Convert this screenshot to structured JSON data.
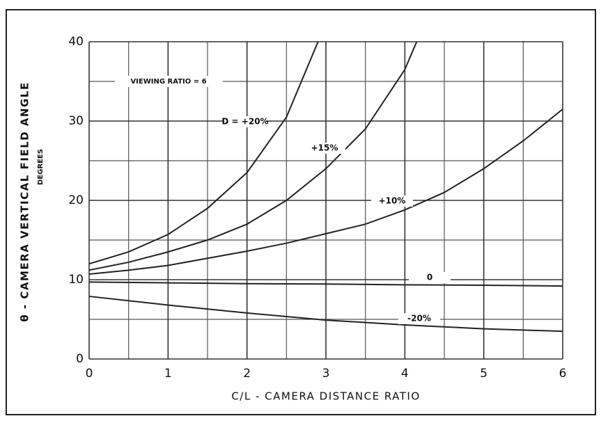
{
  "chart_data": {
    "type": "line",
    "xlabel": "C/L - CAMERA DISTANCE RATIO",
    "ylabel": "θ - CAMERA VERTICAL FIELD ANGLE",
    "ylabel_unit": "DEGREES",
    "annotation": "VIEWING RATIO = 6",
    "xlim": [
      0,
      6
    ],
    "xticks": [
      0,
      1,
      2,
      3,
      4,
      5,
      6
    ],
    "ylim": [
      0,
      40
    ],
    "yticks": [
      0,
      10,
      20,
      30,
      40
    ],
    "xminor_ticks": [
      0.5,
      1.5,
      2.5,
      3.5,
      4.5,
      5.5
    ],
    "yminor_ticks": [
      5,
      15,
      25,
      35
    ],
    "grid": true,
    "series": [
      {
        "name": "D = +20%",
        "color": "#222222",
        "x": [
          0,
          0.5,
          1,
          1.5,
          2,
          2.5,
          2.9
        ],
        "values": [
          12,
          13.5,
          15.7,
          19,
          23.5,
          30.5,
          40
        ]
      },
      {
        "name": "+15%",
        "color": "#222222",
        "x": [
          0,
          0.5,
          1,
          1.5,
          2,
          2.5,
          3,
          3.5,
          4,
          4.15
        ],
        "values": [
          11.2,
          12.2,
          13.5,
          15,
          17,
          20,
          24,
          29,
          36.5,
          40
        ]
      },
      {
        "name": "+10%",
        "color": "#222222",
        "x": [
          0,
          0.5,
          1,
          1.5,
          2,
          2.5,
          3,
          3.5,
          4,
          4.5,
          5,
          5.5,
          6
        ],
        "values": [
          10.7,
          11.2,
          11.8,
          12.7,
          13.6,
          14.6,
          15.8,
          17,
          18.8,
          21,
          24,
          27.5,
          31.5
        ]
      },
      {
        "name": "0",
        "color": "#222222",
        "x": [
          0,
          1,
          2,
          3,
          4,
          5,
          6
        ],
        "values": [
          9.7,
          9.6,
          9.5,
          9.45,
          9.35,
          9.3,
          9.2
        ]
      },
      {
        "name": "-20%",
        "color": "#222222",
        "x": [
          0,
          1,
          2,
          3,
          4,
          5,
          6
        ],
        "values": [
          7.9,
          6.8,
          5.8,
          4.9,
          4.3,
          3.8,
          3.5
        ]
      }
    ]
  }
}
